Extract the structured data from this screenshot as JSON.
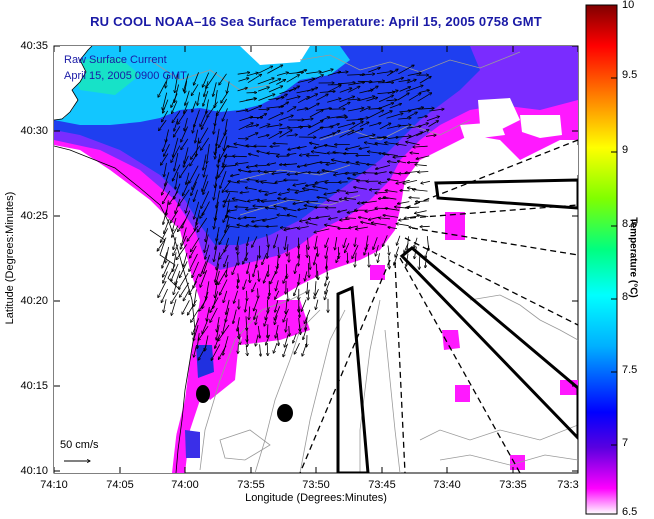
{
  "title": "RU COOL  NOAA–16  Sea Surface Temperature:  April 15, 2005 0758 GMT",
  "subtitle_line1": "Raw Surface Current",
  "subtitle_line2": "April 15, 2005 0900 GMT",
  "axes": {
    "x_title": "Longitude (Degrees:Minutes)",
    "y_title": "Latitude (Degrees:Minutes)",
    "x_ticks": [
      "74:10",
      "74:05",
      "74:00",
      "73:55",
      "73:50",
      "73:45",
      "73:40",
      "73:35",
      "73:3"
    ],
    "y_ticks": [
      "40:35",
      "40:30",
      "40:25",
      "40:20",
      "40:15",
      "40:10"
    ]
  },
  "colorbar": {
    "title": "Temperature (°C)",
    "ticks": [
      "10",
      "9.5",
      "9",
      "8.5",
      "8",
      "7.5",
      "7",
      "6.5"
    ],
    "range": [
      6.5,
      10
    ]
  },
  "scale_label": "50 cm/s",
  "colors": {
    "land": "#ffffff",
    "sst_cold": "#ff19ff",
    "sst_mid": "#2a4cf0",
    "sst_warm": "#10c8ff",
    "title": "#1a1aa6"
  }
}
